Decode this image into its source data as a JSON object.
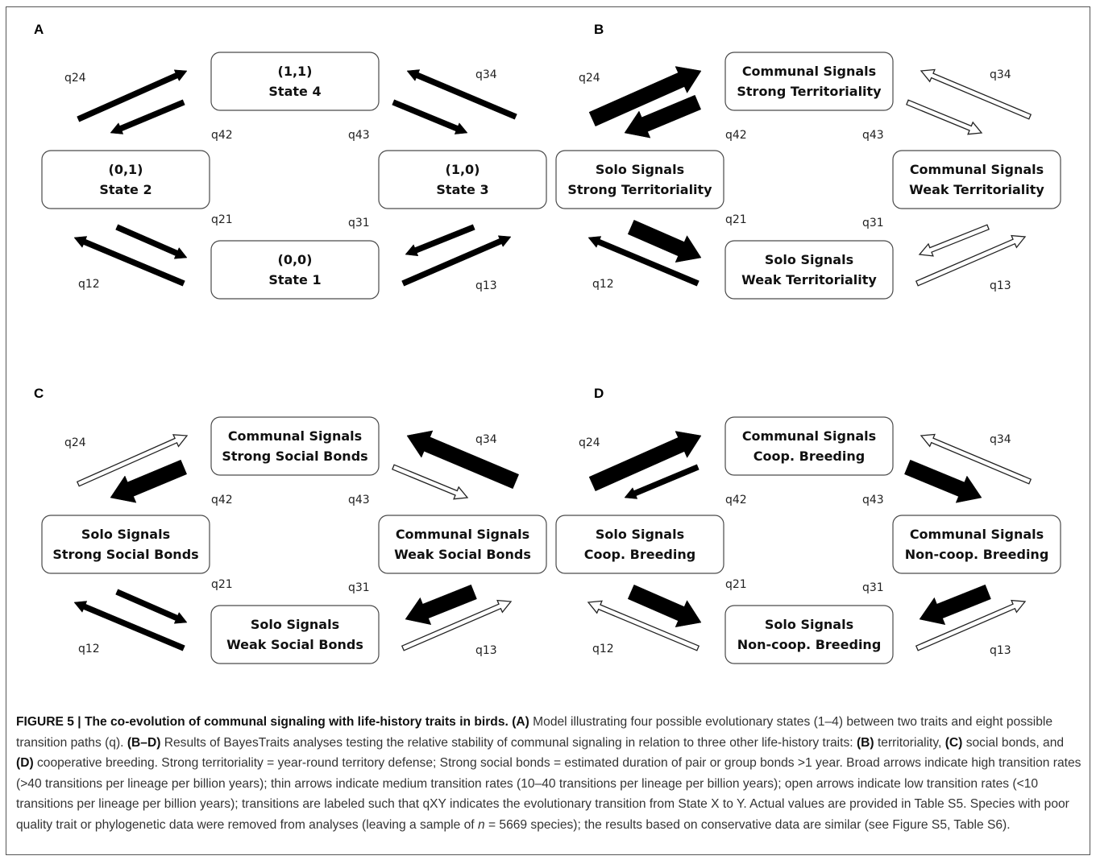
{
  "figure": {
    "panels": [
      {
        "letter": "A",
        "boxes": {
          "s4": [
            "(1,1)",
            "State 4"
          ],
          "s2": [
            "(0,1)",
            "State 2"
          ],
          "s3": [
            "(1,0)",
            "State 3"
          ],
          "s1": [
            "(0,0)",
            "State 1"
          ]
        },
        "rates": {
          "q24": "medium",
          "q42": "medium",
          "q34": "medium",
          "q43": "medium",
          "q21": "medium",
          "q12": "medium",
          "q31": "medium",
          "q13": "medium"
        }
      },
      {
        "letter": "B",
        "boxes": {
          "s4": [
            "Communal Signals",
            "Strong Territoriality"
          ],
          "s2": [
            "Solo Signals",
            "Strong Territoriality"
          ],
          "s3": [
            "Communal Signals",
            "Weak Territoriality"
          ],
          "s1": [
            "Solo Signals",
            "Weak Territoriality"
          ]
        },
        "rates": {
          "q24": "high",
          "q42": "high",
          "q34": "low",
          "q43": "low",
          "q21": "high",
          "q12": "medium",
          "q31": "low",
          "q13": "low"
        }
      },
      {
        "letter": "C",
        "boxes": {
          "s4": [
            "Communal Signals",
            "Strong Social Bonds"
          ],
          "s2": [
            "Solo Signals",
            "Strong Social Bonds"
          ],
          "s3": [
            "Communal Signals",
            "Weak Social Bonds"
          ],
          "s1": [
            "Solo Signals",
            "Weak Social Bonds"
          ]
        },
        "rates": {
          "q24": "low",
          "q42": "high",
          "q34": "high",
          "q43": "low",
          "q21": "medium",
          "q12": "medium",
          "q31": "high",
          "q13": "low"
        }
      },
      {
        "letter": "D",
        "boxes": {
          "s4": [
            "Communal Signals",
            "Coop. Breeding"
          ],
          "s2": [
            "Solo Signals",
            "Coop. Breeding"
          ],
          "s3": [
            "Communal Signals",
            "Non-coop. Breeding"
          ],
          "s1": [
            "Solo Signals",
            "Non-coop. Breeding"
          ]
        },
        "rates": {
          "q24": "high",
          "q42": "medium",
          "q34": "low",
          "q43": "high",
          "q21": "high",
          "q12": "low",
          "q31": "high",
          "q13": "low"
        }
      }
    ],
    "labels": {
      "q24": "q24",
      "q42": "q42",
      "q34": "q34",
      "q43": "q43",
      "q21": "q21",
      "q31": "q31",
      "q12": "q12",
      "q13": "q13"
    }
  },
  "caption": {
    "title": "FIGURE 5 | The co-evolution of communal signaling with life-history traits in birds.",
    "segments": [
      {
        "bold": true,
        "text": "(A)"
      },
      {
        "bold": false,
        "text": " Model illustrating four possible evolutionary states (1–4) between two traits and eight possible transition paths (q). "
      },
      {
        "bold": true,
        "text": "(B–D)"
      },
      {
        "bold": false,
        "text": " Results of BayesTraits analyses testing the relative stability of communal signaling in relation to three other life-history traits: "
      },
      {
        "bold": true,
        "text": "(B)"
      },
      {
        "bold": false,
        "text": " territoriality, "
      },
      {
        "bold": true,
        "text": "(C)"
      },
      {
        "bold": false,
        "text": " social bonds, and "
      },
      {
        "bold": true,
        "text": "(D)"
      },
      {
        "bold": false,
        "text": " cooperative breeding. Strong territoriality = year-round territory defense; Strong social bonds = estimated duration of pair or group bonds >1 year. Broad arrows indicate high transition rates (>40 transitions per lineage per billion years); thin arrows indicate medium transition rates (10–40 transitions per lineage per billion years); open arrows indicate low transition rates (<10 transitions per lineage per billion years); transitions are labeled such that qXY indicates the evolutionary transition from State X to Y. Actual values are provided in Table S5. Species with poor quality trait or phylogenetic data were removed from analyses (leaving a sample of "
      },
      {
        "bold": false,
        "italic": true,
        "text": "n"
      },
      {
        "bold": false,
        "text": " = 5669 species); the results based on conservative data are similar (see Figure S5, Table S6)."
      }
    ]
  }
}
